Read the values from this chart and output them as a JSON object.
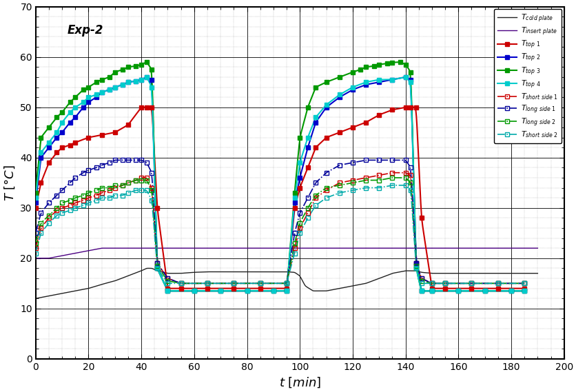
{
  "title": "Exp-2",
  "xlabel": "t\\ [min]",
  "ylabel": "T\\ [\\u00b0C]",
  "xlim": [
    0,
    200
  ],
  "ylim": [
    0,
    70
  ],
  "xticks": [
    0,
    20,
    40,
    60,
    80,
    100,
    120,
    140,
    160,
    180,
    200
  ],
  "yticks": [
    0,
    10,
    20,
    30,
    40,
    50,
    60,
    70
  ],
  "cold_plate": {
    "color": "#222222",
    "t": [
      0,
      2,
      5,
      10,
      15,
      20,
      25,
      30,
      35,
      40,
      42,
      44,
      46,
      50,
      55,
      60,
      65,
      70,
      75,
      80,
      85,
      90,
      95,
      98,
      100,
      102,
      105,
      110,
      115,
      120,
      125,
      130,
      135,
      140,
      142,
      144,
      146,
      150,
      155,
      160,
      165,
      170,
      175,
      180,
      185,
      190
    ],
    "T": [
      12,
      12.2,
      12.5,
      13.0,
      13.5,
      14.0,
      14.8,
      15.5,
      16.5,
      17.5,
      18.0,
      18.0,
      17.5,
      17.0,
      17.0,
      17.2,
      17.3,
      17.3,
      17.3,
      17.3,
      17.3,
      17.3,
      17.3,
      17.2,
      16.5,
      14.5,
      13.5,
      13.5,
      14.0,
      14.5,
      15.0,
      16.0,
      17.0,
      17.5,
      17.5,
      17.5,
      17.2,
      17.0,
      17.0,
      17.0,
      17.0,
      17.0,
      17.0,
      17.0,
      17.0,
      17.0
    ]
  },
  "insert_plate": {
    "color": "#4B0082",
    "t": [
      0,
      2,
      5,
      10,
      15,
      20,
      25,
      30,
      35,
      40,
      42,
      44,
      46,
      50,
      55,
      60,
      65,
      70,
      75,
      80,
      85,
      90,
      95,
      98,
      100,
      102,
      105,
      110,
      115,
      120,
      125,
      130,
      135,
      140,
      142,
      144,
      146,
      150,
      155,
      160,
      165,
      170,
      175,
      180,
      185,
      190
    ],
    "T": [
      20,
      20.0,
      20.0,
      20.5,
      21.0,
      21.5,
      22.0,
      22.0,
      22.0,
      22.0,
      22.0,
      22.0,
      22.0,
      22.0,
      22.0,
      22.0,
      22.0,
      22.0,
      22.0,
      22.0,
      22.0,
      22.0,
      22.0,
      22.0,
      22.0,
      22.0,
      22.0,
      22.0,
      22.0,
      22.0,
      22.0,
      22.0,
      22.0,
      22.0,
      22.0,
      22.0,
      22.0,
      22.0,
      22.0,
      22.0,
      22.0,
      22.0,
      22.0,
      22.0,
      22.0,
      22.0
    ]
  },
  "top1": {
    "color": "#cc0000",
    "marker": "s",
    "t": [
      0,
      2,
      5,
      8,
      10,
      13,
      15,
      20,
      25,
      30,
      35,
      40,
      42,
      44,
      46,
      50,
      55,
      65,
      75,
      85,
      95,
      98,
      100,
      103,
      106,
      110,
      115,
      120,
      125,
      130,
      135,
      140,
      142,
      144,
      146,
      150,
      155,
      165,
      175,
      185
    ],
    "T": [
      30,
      35,
      39,
      41,
      42,
      42.5,
      43,
      44,
      44.5,
      45,
      46.5,
      50,
      50,
      50,
      30,
      14,
      14,
      14,
      14,
      14,
      14,
      30,
      34,
      38,
      42,
      44,
      45,
      46,
      47,
      48.5,
      49.5,
      50,
      50,
      50,
      28,
      14,
      14,
      14,
      14,
      14
    ]
  },
  "top2": {
    "color": "#0000cc",
    "marker": "s",
    "t": [
      0,
      2,
      5,
      8,
      10,
      13,
      15,
      18,
      20,
      23,
      25,
      28,
      30,
      33,
      35,
      38,
      40,
      42,
      44,
      46,
      50,
      60,
      70,
      80,
      90,
      95,
      98,
      100,
      103,
      106,
      110,
      115,
      120,
      125,
      130,
      135,
      140,
      142,
      144,
      146,
      150,
      160,
      170,
      180,
      185
    ],
    "T": [
      31,
      40,
      42,
      44,
      45,
      47,
      48,
      50,
      51,
      52,
      53,
      53.5,
      54,
      54.5,
      55,
      55.2,
      55.5,
      56,
      55.5,
      18,
      13.5,
      13.5,
      13.5,
      13.5,
      13.5,
      13.5,
      31,
      36,
      42,
      47,
      50,
      52,
      53.5,
      54.5,
      55,
      55.5,
      56,
      55.5,
      19,
      13.5,
      13.5,
      13.5,
      13.5,
      13.5,
      13.5
    ]
  },
  "top3": {
    "color": "#009900",
    "marker": "s",
    "t": [
      0,
      2,
      5,
      8,
      10,
      13,
      15,
      18,
      20,
      23,
      25,
      28,
      30,
      33,
      35,
      38,
      40,
      42,
      44,
      46,
      50,
      60,
      70,
      80,
      90,
      95,
      98,
      100,
      103,
      106,
      110,
      115,
      120,
      123,
      125,
      128,
      130,
      133,
      135,
      138,
      140,
      142,
      144,
      146,
      150,
      160,
      170,
      180,
      185
    ],
    "T": [
      33,
      44,
      46,
      48,
      49,
      51,
      52,
      53.5,
      54,
      55,
      55.5,
      56,
      57,
      57.5,
      58,
      58.2,
      58.5,
      59,
      57.5,
      18,
      13.5,
      13.5,
      13.5,
      13.5,
      13.5,
      13.5,
      33,
      44,
      50,
      54,
      55,
      56,
      57,
      57.5,
      58,
      58.2,
      58.5,
      58.7,
      58.9,
      59,
      58.5,
      57,
      18,
      13.5,
      13.5,
      13.5,
      13.5,
      13.5,
      13.5
    ]
  },
  "top4": {
    "color": "#00cccc",
    "marker": "s",
    "t": [
      0,
      2,
      5,
      8,
      10,
      13,
      15,
      18,
      20,
      23,
      25,
      28,
      30,
      33,
      35,
      38,
      40,
      42,
      44,
      46,
      50,
      60,
      70,
      80,
      90,
      95,
      98,
      100,
      103,
      106,
      110,
      115,
      120,
      125,
      130,
      135,
      140,
      142,
      144,
      146,
      150,
      160,
      170,
      180,
      185
    ],
    "T": [
      32,
      41,
      43,
      45,
      47,
      49,
      50,
      51,
      52,
      52.5,
      53,
      53.5,
      54,
      54.5,
      55,
      55.2,
      55.5,
      56,
      54,
      18,
      13.5,
      13.5,
      13.5,
      13.5,
      13.5,
      13.5,
      32,
      39,
      44,
      48,
      50.5,
      52.5,
      54,
      55,
      55.5,
      55.5,
      56,
      55,
      18,
      13.5,
      13.5,
      13.5,
      13.5,
      13.5,
      13.5
    ]
  },
  "short_side1": {
    "color": "#cc0000",
    "t": [
      0,
      2,
      5,
      8,
      10,
      13,
      15,
      18,
      20,
      23,
      25,
      28,
      30,
      33,
      35,
      38,
      40,
      42,
      44,
      46,
      50,
      55,
      65,
      75,
      85,
      95,
      98,
      100,
      103,
      106,
      110,
      115,
      120,
      125,
      130,
      135,
      140,
      142,
      144,
      146,
      150,
      155,
      165,
      175,
      185
    ],
    "T": [
      22,
      26,
      28,
      29.5,
      30,
      30.5,
      31,
      31.5,
      32,
      32.5,
      33,
      33.5,
      34,
      34.5,
      35,
      35.5,
      36,
      36,
      34,
      19,
      16,
      15,
      15,
      15,
      15,
      15,
      22,
      26,
      29,
      32,
      33.5,
      35,
      35.5,
      36,
      36.5,
      37,
      37,
      36.5,
      19,
      16,
      15,
      15,
      15,
      15,
      15
    ]
  },
  "long_side1": {
    "color": "#000099",
    "t": [
      0,
      2,
      5,
      8,
      10,
      13,
      15,
      18,
      20,
      23,
      25,
      28,
      30,
      33,
      35,
      38,
      40,
      42,
      44,
      46,
      50,
      55,
      65,
      75,
      85,
      95,
      98,
      100,
      103,
      106,
      110,
      115,
      120,
      125,
      130,
      135,
      140,
      142,
      144,
      146,
      150,
      155,
      165,
      175,
      185
    ],
    "T": [
      25,
      29,
      31,
      32.5,
      33.5,
      35,
      36,
      37,
      37.5,
      38,
      38.5,
      39,
      39.5,
      39.5,
      39.5,
      39.5,
      39.5,
      39,
      37,
      19,
      16,
      15,
      15,
      15,
      15,
      15,
      25,
      29,
      32,
      35,
      37,
      38.5,
      39,
      39.5,
      39.5,
      39.5,
      39.5,
      38,
      19,
      16,
      15,
      15,
      15,
      15,
      15
    ]
  },
  "long_side2": {
    "color": "#009900",
    "t": [
      0,
      2,
      5,
      8,
      10,
      13,
      15,
      18,
      20,
      23,
      25,
      28,
      30,
      33,
      35,
      38,
      40,
      42,
      44,
      46,
      50,
      55,
      65,
      75,
      85,
      95,
      98,
      100,
      103,
      106,
      110,
      115,
      120,
      125,
      130,
      135,
      140,
      142,
      144,
      146,
      150,
      155,
      165,
      175,
      185
    ],
    "T": [
      23,
      27,
      28.5,
      30,
      31,
      31.5,
      32,
      32.5,
      33,
      33.5,
      34,
      34,
      34.5,
      34.5,
      35,
      35.5,
      35.5,
      35.5,
      33.5,
      18.5,
      15.5,
      15,
      15,
      15,
      15,
      15,
      23,
      27,
      30,
      32.5,
      34,
      34.5,
      35,
      35.5,
      35.5,
      36,
      36,
      35,
      18.5,
      15.5,
      15,
      15,
      15,
      15,
      15
    ]
  },
  "short_side2": {
    "color": "#00aaaa",
    "t": [
      0,
      2,
      5,
      8,
      10,
      13,
      15,
      18,
      20,
      23,
      25,
      28,
      30,
      33,
      35,
      38,
      40,
      42,
      44,
      46,
      50,
      55,
      65,
      75,
      85,
      95,
      98,
      100,
      103,
      106,
      110,
      115,
      120,
      125,
      130,
      135,
      140,
      142,
      144,
      146,
      150,
      155,
      165,
      175,
      185
    ],
    "T": [
      21,
      25,
      27,
      28.5,
      29,
      29.5,
      30,
      30.5,
      31,
      31.5,
      32,
      32,
      32.5,
      32.5,
      33,
      33.5,
      33.5,
      33.5,
      31.5,
      18,
      15,
      15,
      15,
      15,
      15,
      15,
      21,
      25,
      28,
      30.5,
      32,
      33,
      33.5,
      34,
      34,
      34.5,
      34.5,
      33.5,
      18,
      15,
      15,
      15,
      15,
      15,
      15
    ]
  }
}
